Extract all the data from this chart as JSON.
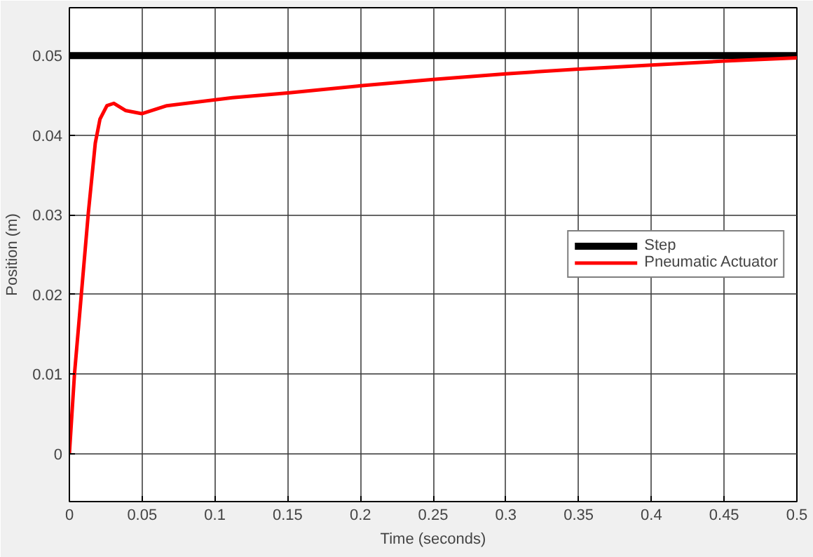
{
  "chart_data": {
    "type": "line",
    "xlabel": "Time (seconds)",
    "ylabel": "Position (m)",
    "xlim": [
      0,
      0.5
    ],
    "ylim": [
      -0.006,
      0.056
    ],
    "xticks": [
      0,
      0.05,
      0.1,
      0.15,
      0.2,
      0.25,
      0.3,
      0.35,
      0.4,
      0.45,
      0.5
    ],
    "yticks": [
      0,
      0.01,
      0.02,
      0.03,
      0.04,
      0.05
    ],
    "grid": true,
    "legend": "right",
    "line_style": "solid",
    "series": [
      {
        "name": "Step",
        "color": "#000000",
        "x": [
          0,
          0.5
        ],
        "values": [
          0.05,
          0.05
        ]
      },
      {
        "name": "Pneumatic Actuator",
        "color": "#ff0000",
        "x": [
          0,
          0.0035,
          0.0083,
          0.013,
          0.0178,
          0.021,
          0.0258,
          0.0306,
          0.0385,
          0.0497,
          0.067,
          0.112,
          0.15,
          0.2,
          0.25,
          0.3,
          0.35,
          0.4,
          0.45,
          0.5
        ],
        "values": [
          0,
          0.01,
          0.0202,
          0.0302,
          0.039,
          0.042,
          0.0437,
          0.044,
          0.0431,
          0.0427,
          0.0437,
          0.0447,
          0.0453,
          0.0462,
          0.047,
          0.0477,
          0.0483,
          0.0488,
          0.0493,
          0.0497
        ]
      }
    ]
  }
}
